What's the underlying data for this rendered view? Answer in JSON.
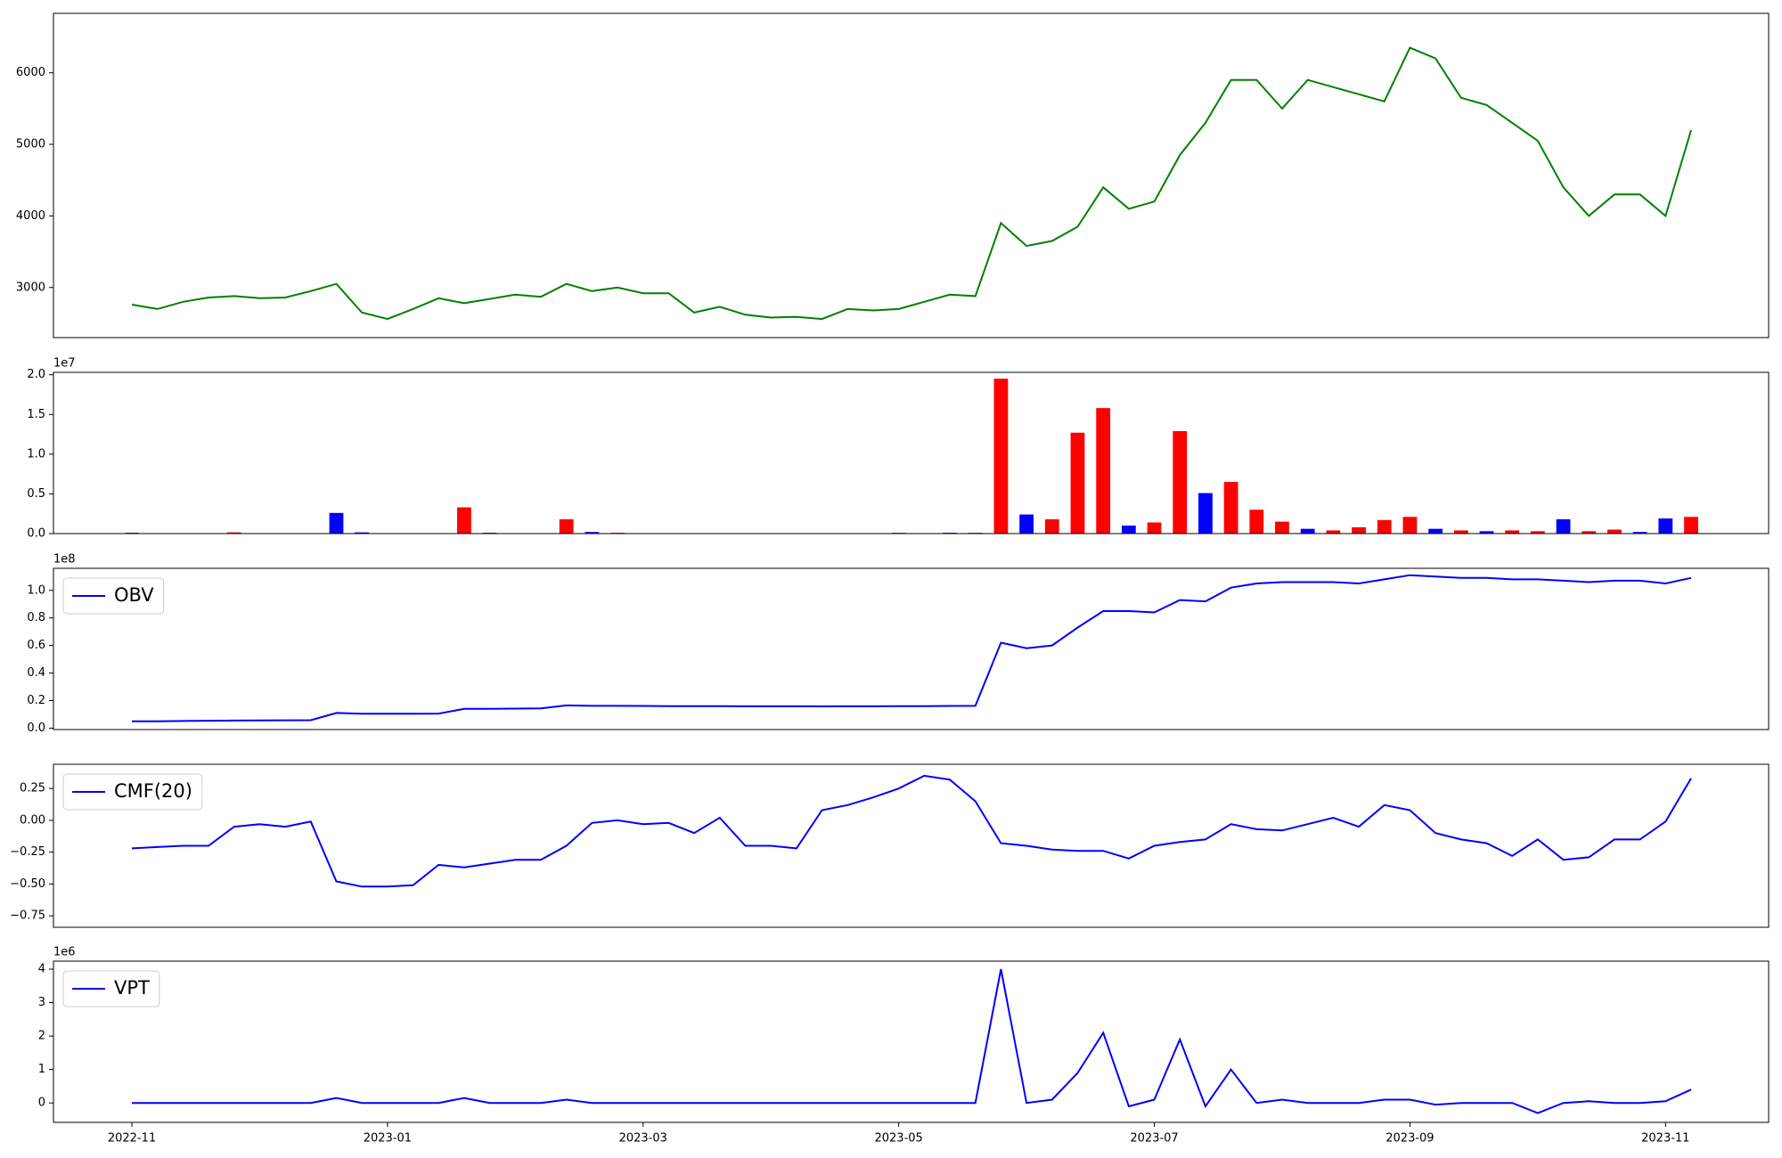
{
  "chart_data": [
    {
      "type": "line",
      "color": "#008000",
      "values": [
        2760,
        2700,
        2800,
        2860,
        2880,
        2850,
        2860,
        2950,
        3050,
        2650,
        2560,
        2700,
        2850,
        2780,
        2840,
        2900,
        2870,
        3050,
        2950,
        3000,
        2920,
        2920,
        2650,
        2730,
        2620,
        2580,
        2590,
        2560,
        2700,
        2680,
        2700,
        2800,
        2900,
        2880,
        3900,
        3580,
        3650,
        3850,
        4400,
        4100,
        4200,
        4850,
        5300,
        5900,
        5900,
        5500,
        5900,
        5800,
        5700,
        5600,
        6350,
        6200,
        5650,
        5550,
        5300,
        5050,
        4400,
        4000,
        4300,
        4300,
        4000,
        5200
      ],
      "ylim": [
        2300,
        6830
      ],
      "yticks": [
        3000,
        4000,
        5000,
        6000
      ]
    },
    {
      "type": "bar",
      "offset_text": "1e7",
      "values": [
        100000,
        0,
        0,
        0,
        150000,
        0,
        0,
        0,
        2600000,
        150000,
        0,
        0,
        0,
        3300000,
        100000,
        0,
        0,
        1800000,
        200000,
        100000,
        0,
        0,
        0,
        0,
        0,
        0,
        0,
        0,
        0,
        0,
        100000,
        0,
        100000,
        100000,
        19500000,
        2400000,
        1800000,
        12700000,
        15800000,
        1000000,
        1400000,
        12900000,
        5100000,
        6500000,
        3000000,
        1500000,
        600000,
        400000,
        800000,
        1700000,
        2100000,
        600000,
        400000,
        300000,
        400000,
        300000,
        1800000,
        300000,
        500000,
        200000,
        1900000,
        2100000
      ],
      "colors": [
        "#0000ff",
        "#0000ff",
        "#0000ff",
        "#0000ff",
        "#ff0000",
        "#0000ff",
        "#0000ff",
        "#0000ff",
        "#0000ff",
        "#0000ff",
        "#0000ff",
        "#0000ff",
        "#0000ff",
        "#ff0000",
        "#0000ff",
        "#0000ff",
        "#0000ff",
        "#ff0000",
        "#0000ff",
        "#ff0000",
        "#0000ff",
        "#0000ff",
        "#0000ff",
        "#0000ff",
        "#0000ff",
        "#0000ff",
        "#0000ff",
        "#0000ff",
        "#0000ff",
        "#0000ff",
        "#ff0000",
        "#0000ff",
        "#0000ff",
        "#ff0000",
        "#ff0000",
        "#0000ff",
        "#ff0000",
        "#ff0000",
        "#ff0000",
        "#0000ff",
        "#ff0000",
        "#ff0000",
        "#0000ff",
        "#ff0000",
        "#ff0000",
        "#ff0000",
        "#0000ff",
        "#ff0000",
        "#ff0000",
        "#ff0000",
        "#ff0000",
        "#0000ff",
        "#ff0000",
        "#0000ff",
        "#ff0000",
        "#ff0000",
        "#0000ff",
        "#ff0000",
        "#ff0000",
        "#0000ff",
        "#0000ff",
        "#ff0000"
      ],
      "ylim": [
        0,
        20300000
      ],
      "yticks": [
        {
          "value": 0,
          "label": "0.0"
        },
        {
          "value": 5000000,
          "label": "0.5"
        },
        {
          "value": 10000000,
          "label": "1.0"
        },
        {
          "value": 15000000,
          "label": "1.5"
        },
        {
          "value": 20000000,
          "label": "2.0"
        }
      ]
    },
    {
      "type": "line",
      "offset_text": "1e8",
      "legend": "upper left",
      "series": [
        {
          "name": "OBV",
          "color": "#0000ff",
          "values": [
            5000000,
            5000000,
            5200000,
            5400000,
            5500000,
            5600000,
            5700000,
            5800000,
            11000000,
            10500000,
            10500000,
            10500000,
            10600000,
            14000000,
            14000000,
            14200000,
            14400000,
            16500000,
            16200000,
            16200000,
            16100000,
            16000000,
            16000000,
            16000000,
            15900000,
            15900000,
            15900000,
            15800000,
            15900000,
            15900000,
            16000000,
            16000000,
            16100000,
            16200000,
            62000000,
            58000000,
            60000000,
            73000000,
            85000000,
            85000000,
            84000000,
            93000000,
            92000000,
            102000000,
            105000000,
            106000000,
            106000000,
            106000000,
            105000000,
            108000000,
            111000000,
            110000000,
            109000000,
            109000000,
            108000000,
            108000000,
            107000000,
            106000000,
            107000000,
            107000000,
            105000000,
            109000000
          ]
        }
      ],
      "ylim": [
        -1000000,
        116000000
      ],
      "yticks": [
        {
          "value": 0,
          "label": "0.0"
        },
        {
          "value": 20000000,
          "label": "0.2"
        },
        {
          "value": 40000000,
          "label": "0.4"
        },
        {
          "value": 60000000,
          "label": "0.6"
        },
        {
          "value": 80000000,
          "label": "0.8"
        },
        {
          "value": 100000000,
          "label": "1.0"
        }
      ]
    },
    {
      "type": "line",
      "legend": "upper left",
      "series": [
        {
          "name": "CMF(20)",
          "color": "#0000ff",
          "values": [
            -0.22,
            -0.21,
            -0.2,
            -0.2,
            -0.05,
            -0.03,
            -0.05,
            -0.01,
            -0.48,
            -0.52,
            -0.52,
            -0.51,
            -0.35,
            -0.37,
            -0.34,
            -0.31,
            -0.31,
            -0.2,
            -0.02,
            0.0,
            -0.03,
            -0.02,
            -0.1,
            0.02,
            -0.2,
            -0.2,
            -0.22,
            0.08,
            0.12,
            0.18,
            0.25,
            0.35,
            0.32,
            0.15,
            -0.18,
            -0.2,
            -0.23,
            -0.24,
            -0.24,
            -0.3,
            -0.2,
            -0.17,
            -0.15,
            -0.03,
            -0.07,
            -0.08,
            -0.03,
            0.02,
            -0.05,
            0.12,
            0.08,
            -0.1,
            -0.15,
            -0.18,
            -0.28,
            -0.15,
            -0.31,
            -0.29,
            -0.15,
            -0.15,
            -0.01,
            0.33
          ]
        }
      ],
      "ylim": [
        -0.84,
        0.44
      ],
      "yticks": [
        {
          "value": -0.75,
          "label": "−0.75"
        },
        {
          "value": -0.5,
          "label": "−0.50"
        },
        {
          "value": -0.25,
          "label": "−0.25"
        },
        {
          "value": 0,
          "label": "0.00"
        },
        0.25
      ]
    },
    {
      "type": "line",
      "offset_text": "1e6",
      "legend": "upper left",
      "series": [
        {
          "name": "VPT",
          "color": "#0000ff",
          "values": [
            0,
            0,
            0,
            0,
            0,
            0,
            0,
            0,
            150000,
            0,
            0,
            0,
            0,
            150000,
            0,
            0,
            0,
            100000,
            0,
            0,
            0,
            0,
            0,
            0,
            0,
            0,
            0,
            0,
            0,
            0,
            0,
            0,
            0,
            0,
            4000000,
            0,
            100000,
            900000,
            2100000,
            -100000,
            100000,
            1900000,
            -100000,
            1000000,
            0,
            100000,
            0,
            0,
            0,
            100000,
            100000,
            -50000,
            0,
            0,
            0,
            -300000,
            0,
            50000,
            0,
            0,
            50000,
            400000
          ]
        }
      ],
      "ylim": [
        -580000,
        4240000
      ],
      "yticks": [
        0,
        {
          "value": 1000000,
          "label": "1"
        },
        {
          "value": 2000000,
          "label": "2"
        },
        {
          "value": 3000000,
          "label": "3"
        },
        {
          "value": 4000000,
          "label": "4"
        }
      ],
      "categories": [
        "2022-11",
        null,
        null,
        null,
        null,
        null,
        null,
        null,
        null,
        null,
        "2023-01",
        null,
        null,
        null,
        null,
        null,
        null,
        null,
        null,
        null,
        "2023-03",
        null,
        null,
        null,
        null,
        null,
        null,
        null,
        null,
        null,
        "2023-05",
        null,
        null,
        null,
        null,
        null,
        null,
        null,
        null,
        null,
        "2023-07",
        null,
        null,
        null,
        null,
        null,
        null,
        null,
        null,
        null,
        "2023-09",
        null,
        null,
        null,
        null,
        null,
        null,
        null,
        null,
        null,
        "2023-11",
        null
      ]
    }
  ]
}
